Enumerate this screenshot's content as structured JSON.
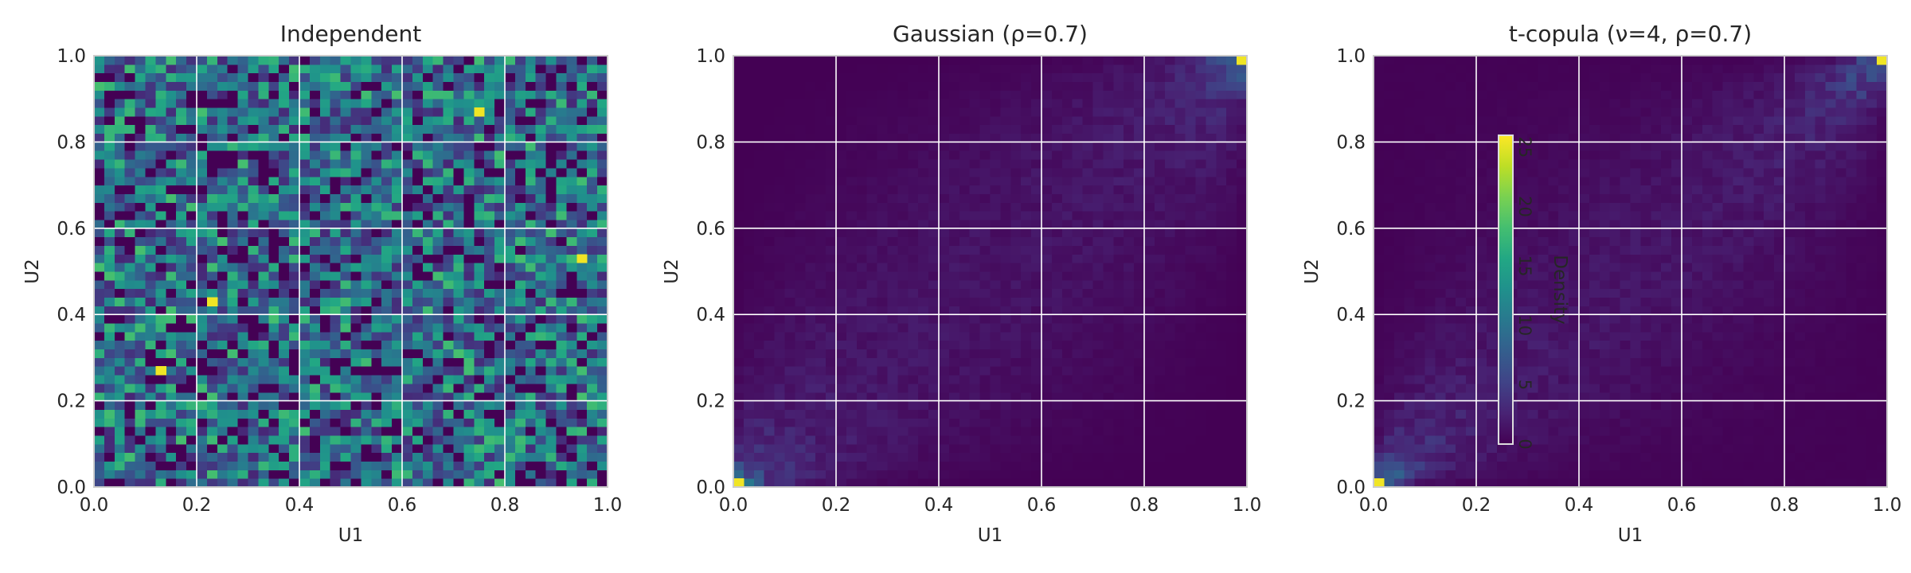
{
  "chart_data": [
    {
      "type": "heatmap",
      "title": "Independent",
      "xlabel": "U1",
      "ylabel": "U2",
      "xlim": [
        0.0,
        1.0
      ],
      "ylim": [
        0.0,
        1.0
      ],
      "xticks": [
        "0.0",
        "0.2",
        "0.4",
        "0.6",
        "0.8",
        "1.0"
      ],
      "yticks": [
        "0.0",
        "0.2",
        "0.4",
        "0.6",
        "0.8",
        "1.0"
      ],
      "grid": true,
      "colormap": "viridis",
      "bins": 50,
      "density_model": "uniform",
      "approx_density_range": [
        0,
        3.2
      ],
      "bright_cells": [
        {
          "u1": 0.13,
          "u2": 0.27
        },
        {
          "u1": 0.95,
          "u2": 0.53
        },
        {
          "u1": 0.23,
          "u2": 0.43
        },
        {
          "u1": 0.75,
          "u2": 0.87
        }
      ]
    },
    {
      "type": "heatmap",
      "title": "Gaussian (ρ=0.7)",
      "xlabel": "U1",
      "ylabel": "U2",
      "xlim": [
        0.0,
        1.0
      ],
      "ylim": [
        0.0,
        1.0
      ],
      "xticks": [
        "0.0",
        "0.2",
        "0.4",
        "0.6",
        "0.8",
        "1.0"
      ],
      "yticks": [
        "0.0",
        "0.2",
        "0.4",
        "0.6",
        "0.8",
        "1.0"
      ],
      "grid": true,
      "colormap": "viridis",
      "bins": 50,
      "density_model": "gaussian copula",
      "rho": 0.7,
      "approx_density_range": [
        0,
        26
      ],
      "bright_cells": [
        {
          "u1": 0.99,
          "u2": 0.99
        },
        {
          "u1": 0.01,
          "u2": 0.01
        }
      ]
    },
    {
      "type": "heatmap",
      "title": "t-copula (ν=4, ρ=0.7)",
      "xlabel": "U1",
      "ylabel": "U2",
      "xlim": [
        0.0,
        1.0
      ],
      "ylim": [
        0.0,
        1.0
      ],
      "xticks": [
        "0.0",
        "0.2",
        "0.4",
        "0.6",
        "0.8",
        "1.0"
      ],
      "yticks": [
        "0.0",
        "0.2",
        "0.4",
        "0.6",
        "0.8",
        "1.0"
      ],
      "grid": true,
      "colormap": "viridis",
      "bins": 50,
      "density_model": "t copula",
      "nu": 4,
      "rho": 0.7,
      "approx_density_range": [
        0,
        26
      ],
      "bright_cells": [
        {
          "u1": 0.01,
          "u2": 0.01
        },
        {
          "u1": 0.99,
          "u2": 0.99
        }
      ],
      "colorbar": {
        "label": "Density",
        "ticks": [
          "0",
          "5",
          "10",
          "15",
          "20",
          "25"
        ],
        "range": [
          0,
          26
        ],
        "placement": "inside plot, left-center"
      }
    }
  ]
}
